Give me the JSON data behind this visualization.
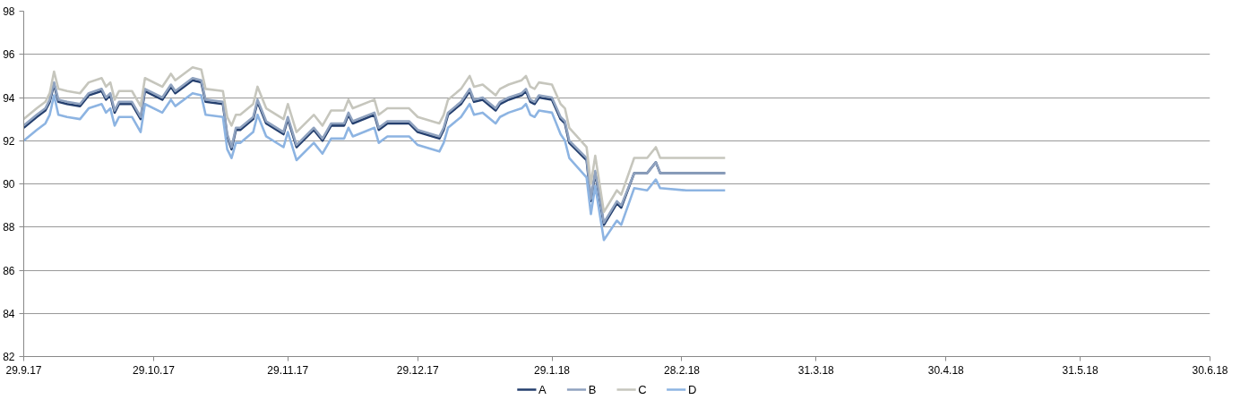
{
  "chart_data": {
    "type": "line",
    "x": [
      "2017-09-29",
      "2017-10-02",
      "2017-10-04",
      "2017-10-05",
      "2017-10-06",
      "2017-10-07",
      "2017-10-09",
      "2017-10-12",
      "2017-10-14",
      "2017-10-17",
      "2017-10-18",
      "2017-10-19",
      "2017-10-20",
      "2017-10-21",
      "2017-10-24",
      "2017-10-26",
      "2017-10-27",
      "2017-10-31",
      "2017-11-02",
      "2017-11-03",
      "2017-11-07",
      "2017-11-09",
      "2017-11-10",
      "2017-11-14",
      "2017-11-15",
      "2017-11-16",
      "2017-11-17",
      "2017-11-18",
      "2017-11-21",
      "2017-11-22",
      "2017-11-24",
      "2017-11-28",
      "2017-11-29",
      "2017-12-01",
      "2017-12-05",
      "2017-12-07",
      "2017-12-09",
      "2017-12-12",
      "2017-12-13",
      "2017-12-14",
      "2017-12-19",
      "2017-12-20",
      "2017-12-22",
      "2017-12-27",
      "2017-12-29",
      "2018-01-03",
      "2018-01-04",
      "2018-01-05",
      "2018-01-08",
      "2018-01-10",
      "2018-01-11",
      "2018-01-13",
      "2018-01-16",
      "2018-01-17",
      "2018-01-19",
      "2018-01-22",
      "2018-01-23",
      "2018-01-24",
      "2018-01-25",
      "2018-01-26",
      "2018-01-29",
      "2018-01-31",
      "2018-02-01",
      "2018-02-02",
      "2018-02-06",
      "2018-02-07",
      "2018-02-08",
      "2018-02-10",
      "2018-02-13",
      "2018-02-14",
      "2018-02-17",
      "2018-02-20",
      "2018-02-22",
      "2018-02-23",
      "2018-03-01",
      "2018-03-05",
      "2018-03-10"
    ],
    "series": [
      {
        "name": "A",
        "color": "#243f6e",
        "values": [
          92.6,
          93.1,
          93.4,
          93.8,
          94.6,
          93.8,
          93.7,
          93.6,
          94.1,
          94.3,
          93.9,
          94.1,
          93.3,
          93.7,
          93.7,
          93.0,
          94.3,
          93.9,
          94.5,
          94.2,
          94.8,
          94.7,
          93.8,
          93.7,
          92.2,
          91.6,
          92.5,
          92.5,
          93.0,
          93.8,
          92.8,
          92.3,
          93.0,
          91.7,
          92.5,
          92.0,
          92.7,
          92.7,
          93.2,
          92.8,
          93.2,
          92.5,
          92.8,
          92.8,
          92.4,
          92.1,
          92.5,
          93.2,
          93.7,
          94.3,
          93.8,
          93.9,
          93.4,
          93.7,
          93.9,
          94.1,
          94.3,
          93.8,
          93.7,
          94.0,
          93.9,
          93.0,
          92.8,
          91.9,
          91.1,
          89.2,
          90.5,
          88.1,
          89.1,
          88.9,
          90.5,
          90.5,
          91.0,
          90.5,
          90.5,
          90.5,
          90.5
        ]
      },
      {
        "name": "B",
        "color": "#8fa2bf",
        "values": [
          92.7,
          93.2,
          93.5,
          93.9,
          94.7,
          93.9,
          93.8,
          93.7,
          94.2,
          94.4,
          94.0,
          94.2,
          93.4,
          93.8,
          93.8,
          93.1,
          94.4,
          94.0,
          94.6,
          94.3,
          94.9,
          94.8,
          93.9,
          93.8,
          92.3,
          91.7,
          92.6,
          92.6,
          93.1,
          93.9,
          92.9,
          92.4,
          93.1,
          91.8,
          92.6,
          92.1,
          92.8,
          92.8,
          93.3,
          92.9,
          93.3,
          92.6,
          92.9,
          92.9,
          92.5,
          92.2,
          92.6,
          93.3,
          93.8,
          94.4,
          93.9,
          94.0,
          93.5,
          93.8,
          94.0,
          94.2,
          94.4,
          93.9,
          93.8,
          94.1,
          94.0,
          93.1,
          92.9,
          92.0,
          91.2,
          89.3,
          90.6,
          88.2,
          89.2,
          89.0,
          90.5,
          90.5,
          91.0,
          90.5,
          90.5,
          90.5,
          90.5
        ]
      },
      {
        "name": "C",
        "color": "#c6c6bd",
        "values": [
          93.0,
          93.5,
          93.8,
          94.2,
          95.2,
          94.4,
          94.3,
          94.2,
          94.7,
          94.9,
          94.5,
          94.7,
          93.9,
          94.3,
          94.3,
          93.6,
          94.9,
          94.5,
          95.1,
          94.8,
          95.4,
          95.3,
          94.4,
          94.3,
          93.1,
          92.7,
          93.2,
          93.2,
          93.7,
          94.5,
          93.5,
          93.0,
          93.7,
          92.4,
          93.2,
          92.7,
          93.4,
          93.4,
          93.9,
          93.5,
          93.9,
          93.2,
          93.5,
          93.5,
          93.1,
          92.8,
          93.2,
          93.9,
          94.4,
          95.0,
          94.5,
          94.6,
          94.1,
          94.4,
          94.6,
          94.8,
          95.0,
          94.5,
          94.4,
          94.7,
          94.6,
          93.7,
          93.5,
          92.6,
          91.7,
          90.0,
          91.3,
          88.7,
          89.7,
          89.5,
          91.2,
          91.2,
          91.7,
          91.2,
          91.2,
          91.2,
          91.2
        ]
      },
      {
        "name": "D",
        "color": "#8db4e2",
        "values": [
          92.0,
          92.5,
          92.8,
          93.2,
          94.1,
          93.2,
          93.1,
          93.0,
          93.5,
          93.7,
          93.3,
          93.5,
          92.7,
          93.1,
          93.1,
          92.4,
          93.7,
          93.3,
          93.9,
          93.6,
          94.2,
          94.1,
          93.2,
          93.1,
          91.6,
          91.2,
          91.9,
          91.9,
          92.4,
          93.2,
          92.2,
          91.7,
          92.4,
          91.1,
          91.9,
          91.4,
          92.1,
          92.1,
          92.6,
          92.2,
          92.6,
          91.9,
          92.2,
          92.2,
          91.8,
          91.5,
          91.9,
          92.6,
          93.1,
          93.7,
          93.2,
          93.3,
          92.8,
          93.1,
          93.3,
          93.5,
          93.7,
          93.2,
          93.1,
          93.4,
          93.3,
          92.3,
          92.0,
          91.2,
          90.3,
          88.6,
          89.9,
          87.4,
          88.3,
          88.1,
          89.8,
          89.7,
          90.2,
          89.8,
          89.7,
          89.7,
          89.7
        ]
      }
    ],
    "xlim": [
      "2017-09-29",
      "2018-06-30"
    ],
    "xticks": [
      {
        "value": "2017-09-29",
        "label": "29.9.17"
      },
      {
        "value": "2017-10-29",
        "label": "29.10.17"
      },
      {
        "value": "2017-11-29",
        "label": "29.11.17"
      },
      {
        "value": "2017-12-29",
        "label": "29.12.17"
      },
      {
        "value": "2018-01-29",
        "label": "29.1.18"
      },
      {
        "value": "2018-02-28",
        "label": "28.2.18"
      },
      {
        "value": "2018-03-31",
        "label": "31.3.18"
      },
      {
        "value": "2018-04-30",
        "label": "30.4.18"
      },
      {
        "value": "2018-05-31",
        "label": "31.5.18"
      },
      {
        "value": "2018-06-30",
        "label": "30.6.18"
      }
    ],
    "ylim": [
      82,
      98
    ],
    "yticks": [
      82,
      84,
      86,
      88,
      90,
      92,
      94,
      96,
      98
    ],
    "grid": "y",
    "legend": "bottom",
    "marker": "none",
    "line_style": "solid"
  }
}
